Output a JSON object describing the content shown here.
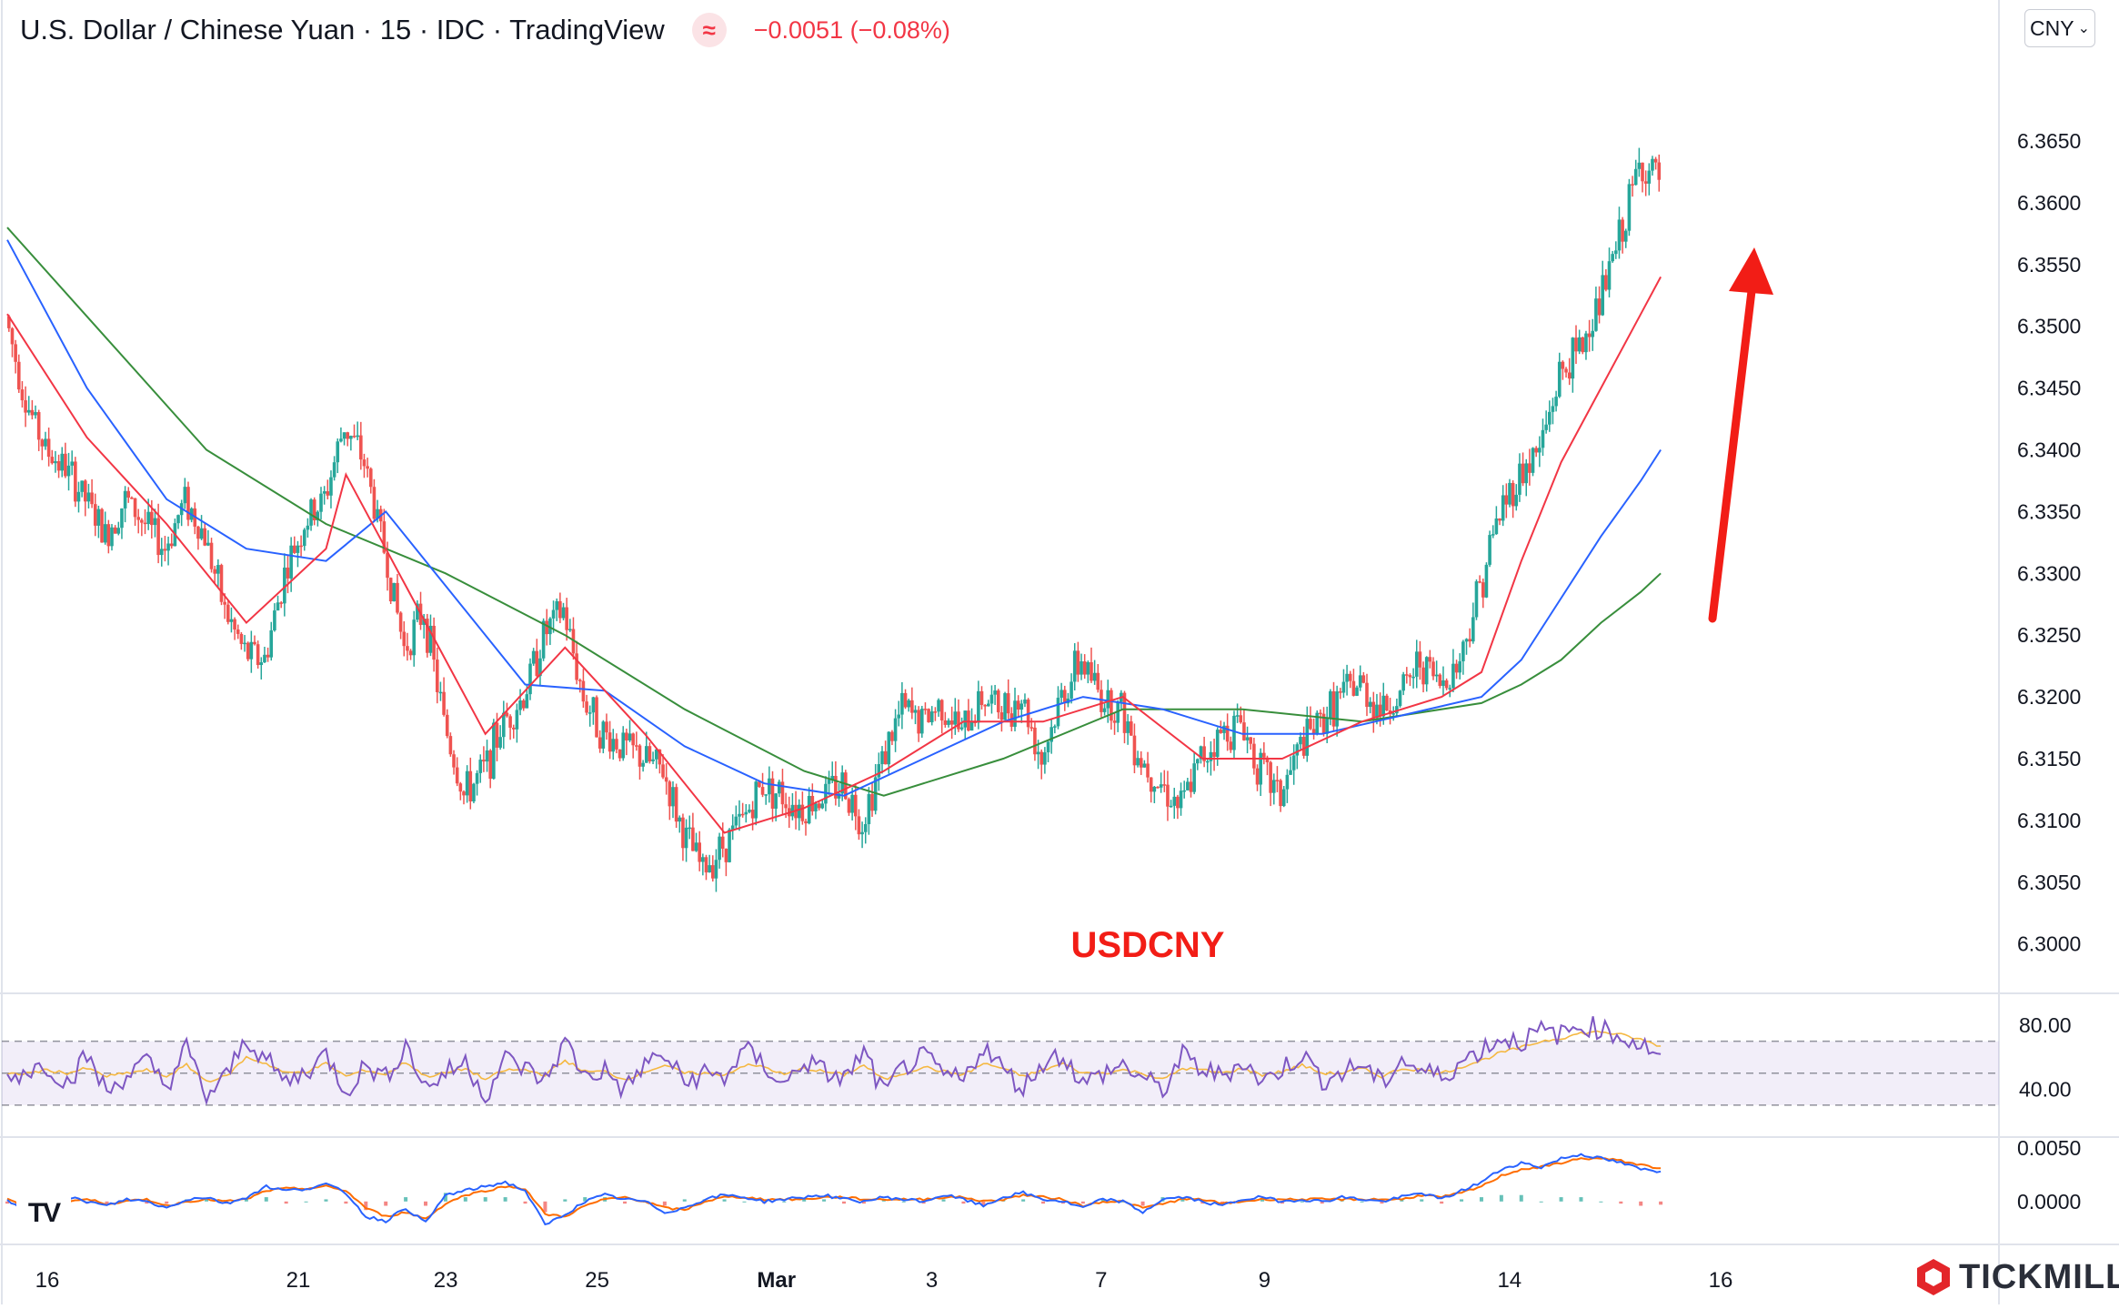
{
  "header": {
    "symbol_line": "U.S. Dollar / Chinese Yuan · 15 · IDC · TradingView",
    "badge_glyph": "≈",
    "change": "−0.0051 (−0.08%)"
  },
  "currency_button": {
    "label": "CNY",
    "icon": "chevron-down-icon"
  },
  "logos": {
    "tradingview": "TV",
    "broker": "TICKMILL"
  },
  "colors": {
    "up": "#26a69a",
    "down": "#ef5350",
    "ema_fast": "#f23645",
    "ema_mid": "#2962ff",
    "ema_slow": "#388e3c",
    "arrow": "#f21d16",
    "rsi": "#7e57c2",
    "rsi_signal": "#f5b841",
    "macd": "#2962ff",
    "macd_signal": "#ff6d00"
  },
  "chart_data": [
    {
      "type": "candlestick",
      "title": "USDCNY",
      "timeframe": "15",
      "x_axis": {
        "tick_labels": [
          "16",
          "21",
          "23",
          "25",
          "Mar",
          "3",
          "7",
          "9",
          "14",
          "16"
        ],
        "tick_positions": [
          0,
          12.6,
          20,
          27.6,
          36.6,
          44.4,
          52.9,
          61.1,
          73.4,
          84
        ]
      },
      "y_axis": {
        "tick_labels": [
          "6.3000",
          "6.3050",
          "6.3100",
          "6.3150",
          "6.3200",
          "6.3250",
          "6.3300",
          "6.3350",
          "6.3400",
          "6.3450",
          "6.3500",
          "6.3550",
          "6.3600",
          "6.3650"
        ],
        "range": [
          6.296,
          6.372
        ]
      },
      "close_path": [
        [
          0,
          6.3508
        ],
        [
          1,
          6.344
        ],
        [
          2,
          6.34
        ],
        [
          3,
          6.3385
        ],
        [
          4,
          6.336
        ],
        [
          5,
          6.333
        ],
        [
          6,
          6.336
        ],
        [
          7,
          6.334
        ],
        [
          8,
          6.332
        ],
        [
          9,
          6.336
        ],
        [
          10,
          6.333
        ],
        [
          11,
          6.327
        ],
        [
          12,
          6.3235
        ],
        [
          13,
          6.323
        ],
        [
          14,
          6.33
        ],
        [
          15,
          6.334
        ],
        [
          16,
          6.336
        ],
        [
          17,
          6.342
        ],
        [
          18,
          6.339
        ],
        [
          19,
          6.332
        ],
        [
          20,
          6.324
        ],
        [
          21,
          6.327
        ],
        [
          22,
          6.318
        ],
        [
          23,
          6.312
        ],
        [
          24,
          6.314
        ],
        [
          25,
          6.318
        ],
        [
          26,
          6.32
        ],
        [
          27,
          6.325
        ],
        [
          28,
          6.327
        ],
        [
          29,
          6.32
        ],
        [
          30,
          6.317
        ],
        [
          31,
          6.316
        ],
        [
          32,
          6.315
        ],
        [
          33,
          6.314
        ],
        [
          34,
          6.309
        ],
        [
          35,
          6.306
        ],
        [
          36,
          6.308
        ],
        [
          37,
          6.31
        ],
        [
          38,
          6.313
        ],
        [
          39,
          6.312
        ],
        [
          40,
          6.311
        ],
        [
          41,
          6.312
        ],
        [
          42,
          6.313
        ],
        [
          43,
          6.31
        ],
        [
          44,
          6.315
        ],
        [
          45,
          6.319
        ],
        [
          46,
          6.318
        ],
        [
          47,
          6.3195
        ],
        [
          48,
          6.317
        ],
        [
          49,
          6.32
        ],
        [
          50,
          6.319
        ],
        [
          51,
          6.32
        ],
        [
          52,
          6.315
        ],
        [
          53,
          6.32
        ],
        [
          54,
          6.323
        ],
        [
          55,
          6.32
        ],
        [
          56,
          6.319
        ],
        [
          57,
          6.315
        ],
        [
          58,
          6.313
        ],
        [
          59,
          6.311
        ],
        [
          60,
          6.315
        ],
        [
          61,
          6.317
        ],
        [
          62,
          6.318
        ],
        [
          63,
          6.314
        ],
        [
          64,
          6.312
        ],
        [
          65,
          6.316
        ],
        [
          66,
          6.318
        ],
        [
          67,
          6.32
        ],
        [
          68,
          6.321
        ],
        [
          69,
          6.319
        ],
        [
          70,
          6.32
        ],
        [
          71,
          6.323
        ],
        [
          72,
          6.321
        ],
        [
          73,
          6.323
        ],
        [
          74,
          6.329
        ],
        [
          75,
          6.335
        ],
        [
          76,
          6.338
        ],
        [
          77,
          6.34
        ],
        [
          78,
          6.346
        ],
        [
          79,
          6.348
        ],
        [
          80,
          6.352
        ],
        [
          81,
          6.357
        ],
        [
          82,
          6.363
        ],
        [
          83,
          6.362
        ]
      ],
      "ema_fast": [
        [
          0,
          6.351
        ],
        [
          4,
          6.341
        ],
        [
          8,
          6.334
        ],
        [
          12,
          6.326
        ],
        [
          16,
          6.332
        ],
        [
          17,
          6.338
        ],
        [
          20,
          6.329
        ],
        [
          24,
          6.317
        ],
        [
          28,
          6.324
        ],
        [
          32,
          6.317
        ],
        [
          36,
          6.309
        ],
        [
          40,
          6.311
        ],
        [
          44,
          6.314
        ],
        [
          48,
          6.318
        ],
        [
          52,
          6.318
        ],
        [
          56,
          6.32
        ],
        [
          60,
          6.315
        ],
        [
          64,
          6.315
        ],
        [
          68,
          6.318
        ],
        [
          72,
          6.32
        ],
        [
          74,
          6.322
        ],
        [
          76,
          6.331
        ],
        [
          78,
          6.339
        ],
        [
          80,
          6.345
        ],
        [
          82,
          6.351
        ],
        [
          83,
          6.354
        ]
      ],
      "ema_mid": [
        [
          0,
          6.357
        ],
        [
          4,
          6.345
        ],
        [
          8,
          6.336
        ],
        [
          12,
          6.332
        ],
        [
          16,
          6.331
        ],
        [
          19,
          6.335
        ],
        [
          22,
          6.329
        ],
        [
          26,
          6.321
        ],
        [
          30,
          6.3205
        ],
        [
          34,
          6.316
        ],
        [
          38,
          6.313
        ],
        [
          42,
          6.312
        ],
        [
          46,
          6.315
        ],
        [
          50,
          6.318
        ],
        [
          54,
          6.32
        ],
        [
          58,
          6.319
        ],
        [
          62,
          6.317
        ],
        [
          66,
          6.317
        ],
        [
          70,
          6.3185
        ],
        [
          74,
          6.32
        ],
        [
          76,
          6.323
        ],
        [
          78,
          6.328
        ],
        [
          80,
          6.333
        ],
        [
          82,
          6.3375
        ],
        [
          83,
          6.34
        ]
      ],
      "ema_slow": [
        [
          0,
          6.358
        ],
        [
          5,
          6.349
        ],
        [
          10,
          6.34
        ],
        [
          16,
          6.334
        ],
        [
          22,
          6.33
        ],
        [
          28,
          6.325
        ],
        [
          34,
          6.319
        ],
        [
          40,
          6.314
        ],
        [
          44,
          6.312
        ],
        [
          50,
          6.315
        ],
        [
          56,
          6.319
        ],
        [
          62,
          6.319
        ],
        [
          68,
          6.318
        ],
        [
          74,
          6.3195
        ],
        [
          76,
          6.321
        ],
        [
          78,
          6.323
        ],
        [
          80,
          6.326
        ],
        [
          82,
          6.3285
        ],
        [
          83,
          6.33
        ]
      ]
    },
    {
      "type": "line",
      "title": "",
      "y_axis": {
        "tick_labels": [
          "80.00",
          "40.00"
        ],
        "range": [
          10,
          100
        ],
        "bands": [
          70,
          30
        ]
      },
      "series": [
        {
          "values": [
            46,
            52,
            55,
            44,
            61,
            38,
            49,
            57,
            42,
            66,
            35,
            48,
            72,
            58,
            44,
            51,
            62,
            39,
            55,
            47,
            68,
            41,
            50,
            57,
            36,
            59,
            53,
            45,
            70,
            48,
            52,
            39,
            56,
            61,
            44,
            50,
            47,
            65,
            55,
            42,
            58,
            51,
            46,
            63,
            37,
            54,
            60,
            49,
            45,
            68,
            52,
            41,
            57,
            62,
            43,
            50,
            55,
            47,
            39,
            61,
            52,
            48,
            58,
            44,
            53,
            62,
            46,
            50,
            56,
            43,
            59,
            51,
            48,
            57,
            65,
            72,
            70,
            76,
            74,
            80,
            78,
            73,
            68,
            62
          ]
        },
        {
          "values": [
            49,
            50,
            52,
            50,
            53,
            48,
            50,
            52,
            48,
            55,
            45,
            48,
            60,
            56,
            50,
            51,
            56,
            48,
            52,
            49,
            57,
            48,
            50,
            53,
            46,
            52,
            52,
            49,
            58,
            51,
            51,
            46,
            51,
            55,
            50,
            50,
            49,
            55,
            54,
            49,
            53,
            51,
            49,
            55,
            46,
            50,
            54,
            51,
            49,
            56,
            53,
            48,
            52,
            56,
            50,
            50,
            52,
            50,
            46,
            53,
            52,
            50,
            53,
            49,
            51,
            55,
            50,
            50,
            53,
            48,
            53,
            52,
            50,
            54,
            58,
            63,
            66,
            70,
            72,
            75,
            76,
            74,
            71,
            67
          ]
        }
      ]
    },
    {
      "type": "line",
      "title": "",
      "y_axis": {
        "tick_labels": [
          "0.0050",
          "0.0000"
        ],
        "range": [
          -0.004,
          0.006
        ]
      },
      "series": [
        {
          "values": [
            0.0,
            -0.001,
            -0.0006,
            0.0004,
            0.0,
            -0.0004,
            0.0002,
            0.0,
            -0.0006,
            0.0002,
            0.0004,
            -0.0002,
            0.0004,
            0.0014,
            0.001,
            0.0012,
            0.0016,
            0.0008,
            -0.0014,
            -0.0018,
            -0.0006,
            -0.002,
            0.0006,
            0.001,
            0.0014,
            0.0018,
            0.001,
            -0.0022,
            -0.0012,
            0.0,
            0.0006,
            0.0002,
            0.0,
            -0.001,
            -0.0006,
            0.0002,
            0.0006,
            0.0004,
            0.0,
            0.0002,
            0.0004,
            0.0006,
            0.0002,
            0.0,
            0.0004,
            0.0002,
            0.0,
            0.0006,
            0.0002,
            -0.0004,
            0.0004,
            0.0008,
            0.0002,
            0.0,
            -0.0006,
            0.0002,
            0.0,
            -0.001,
            0.0002,
            0.0004,
            0.0,
            -0.0004,
            0.0002,
            0.0004,
            0.0,
            0.0002,
            0.0,
            0.0004,
            0.0002,
            0.0,
            0.0004,
            0.0008,
            0.0002,
            0.001,
            0.0018,
            0.003,
            0.0036,
            0.0032,
            0.004,
            0.0044,
            0.004,
            0.0036,
            0.003,
            0.0028
          ]
        },
        {
          "values": [
            0.0002,
            -0.0006,
            -0.0006,
            0.0,
            0.0002,
            -0.0002,
            0.0,
            0.0002,
            -0.0004,
            0.0,
            0.0002,
            0.0,
            0.0002,
            0.001,
            0.0012,
            0.0012,
            0.0014,
            0.001,
            -0.0006,
            -0.0014,
            -0.001,
            -0.0016,
            -0.0002,
            0.0006,
            0.001,
            0.0014,
            0.0012,
            -0.0012,
            -0.0014,
            -0.0004,
            0.0002,
            0.0004,
            0.0,
            -0.0006,
            -0.0008,
            0.0,
            0.0004,
            0.0004,
            0.0002,
            0.0002,
            0.0002,
            0.0004,
            0.0004,
            0.0002,
            0.0002,
            0.0002,
            0.0002,
            0.0004,
            0.0004,
            0.0,
            0.0002,
            0.0006,
            0.0004,
            0.0002,
            -0.0004,
            0.0,
            0.0,
            -0.0006,
            -0.0002,
            0.0002,
            0.0002,
            -0.0002,
            0.0,
            0.0002,
            0.0002,
            0.0002,
            0.0002,
            0.0002,
            0.0002,
            0.0002,
            0.0002,
            0.0006,
            0.0004,
            0.0008,
            0.0014,
            0.0024,
            0.003,
            0.0032,
            0.0036,
            0.004,
            0.004,
            0.0038,
            0.0034,
            0.0031
          ]
        }
      ]
    }
  ]
}
